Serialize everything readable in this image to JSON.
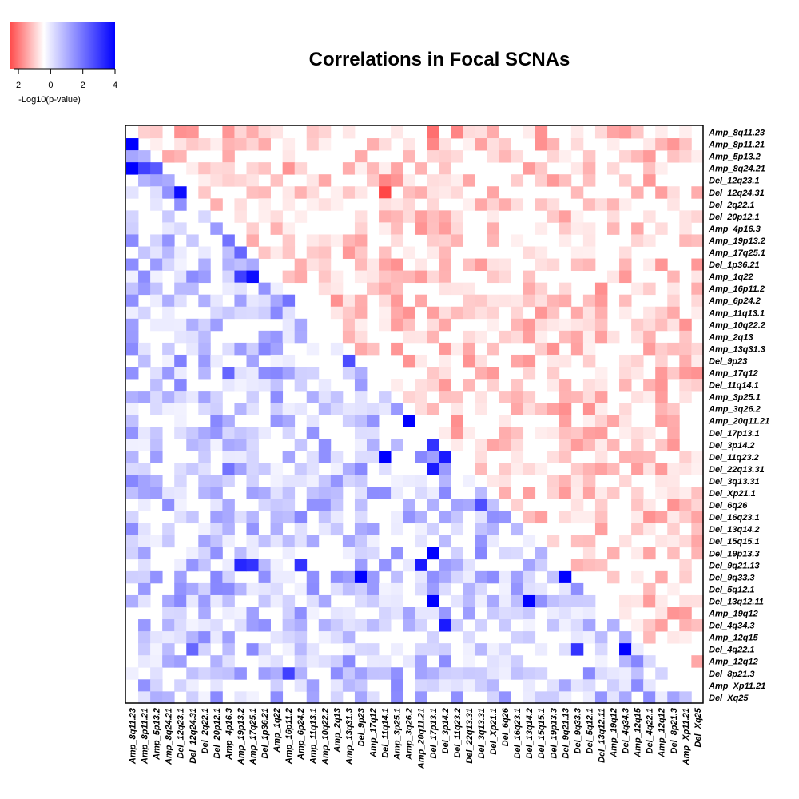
{
  "chart_data": {
    "type": "heatmap",
    "title": "Correlations in Focal SCNAs",
    "legend": {
      "label": "-Log10(p-value)",
      "ticks": [
        "2",
        "0",
        "2",
        "4"
      ],
      "tick_values": [
        -2,
        0,
        2,
        4
      ],
      "range": [
        -2.5,
        4
      ],
      "colors": {
        "negative": "#ff0000",
        "zero": "#ffffff",
        "positive": "#0000ff"
      },
      "placement": "top-left"
    },
    "labels": [
      "Amp_8q11.23",
      "Amp_8p11.21",
      "Amp_5p13.2",
      "Amp_8q24.21",
      "Del_12q23.1",
      "Del_12q24.31",
      "Del_2q22.1",
      "Del_20p12.1",
      "Amp_4p16.3",
      "Amp_19p13.2",
      "Amp_17q25.1",
      "Del_1p36.21",
      "Amp_1q22",
      "Amp_16p11.2",
      "Amp_6p24.2",
      "Amp_11q13.1",
      "Amp_10q22.2",
      "Amp_2q13",
      "Amp_13q31.3",
      "Del_9p23",
      "Amp_17q12",
      "Del_11q14.1",
      "Amp_3p25.1",
      "Amp_3q26.2",
      "Amp_20q11.21",
      "Del_17p13.1",
      "Del_3p14.2",
      "Del_11q23.2",
      "Del_22q13.31",
      "Del_3q13.31",
      "Del_Xp21.1",
      "Del_6q26",
      "Del_16q23.1",
      "Del_13q14.2",
      "Del_15q15.1",
      "Del_19p13.3",
      "Del_9q21.13",
      "Del_9q33.3",
      "Del_5q12.1",
      "Del_13q12.11",
      "Amp_19q12",
      "Del_4q34.3",
      "Amp_12q15",
      "Del_4q22.1",
      "Amp_12q12",
      "Del_8p21.3",
      "Amp_Xp11.21",
      "Del_Xq25"
    ],
    "value_note": "Signed -log10(p): negative = upper triangle (red), positive = lower triangle (blue); values are approximate readings",
    "strong_cells": [
      {
        "row": "Amp_8p11.21",
        "col": "Amp_8q11.23",
        "value": 4.0
      },
      {
        "row": "Amp_5p13.2",
        "col": "Amp_8q11.23",
        "value": 1.4
      },
      {
        "row": "Amp_5p13.2",
        "col": "Amp_8p11.21",
        "value": 1.2
      },
      {
        "row": "Amp_8q24.21",
        "col": "Amp_8q11.23",
        "value": 4.0
      },
      {
        "row": "Amp_8q24.21",
        "col": "Amp_8p11.21",
        "value": 3.0
      },
      {
        "row": "Amp_8q24.21",
        "col": "Amp_5p13.2",
        "value": 2.6
      },
      {
        "row": "Del_12q23.1",
        "col": "Amp_8p11.21",
        "value": 1.2
      },
      {
        "row": "Del_12q24.31",
        "col": "Del_12q23.1",
        "value": 3.8
      },
      {
        "row": "Amp_4p16.3",
        "col": "Del_12q23.1",
        "value": 0.6
      },
      {
        "row": "Amp_19p13.2",
        "col": "Amp_4p16.3",
        "value": 2.2
      },
      {
        "row": "Amp_17q25.1",
        "col": "Amp_4p16.3",
        "value": 1.0
      },
      {
        "row": "Amp_17q25.1",
        "col": "Amp_19p13.2",
        "value": 2.4
      },
      {
        "row": "Del_1p36.21",
        "col": "Amp_19p13.2",
        "value": 1.0
      },
      {
        "row": "Amp_1q22",
        "col": "Amp_19p13.2",
        "value": 3.0
      },
      {
        "row": "Amp_1q22",
        "col": "Amp_17q25.1",
        "value": 3.8
      },
      {
        "row": "Amp_1q22",
        "col": "Amp_8p11.21",
        "value": 1.8
      },
      {
        "row": "Amp_16p11.2",
        "col": "Amp_8p11.21",
        "value": 1.6
      },
      {
        "row": "Amp_6p24.2",
        "col": "Amp_16p11.2",
        "value": 2.2
      },
      {
        "row": "Amp_6p24.2",
        "col": "Amp_1q22",
        "value": 1.4
      },
      {
        "row": "Del_9p23",
        "col": "Amp_13q31.3",
        "value": 2.8
      },
      {
        "row": "Del_9p23",
        "col": "Del_12q23.1",
        "value": 2.0
      },
      {
        "row": "Amp_17q12",
        "col": "Amp_4p16.3",
        "value": 2.4
      },
      {
        "row": "Amp_3q26.2",
        "col": "Amp_3p25.1",
        "value": 1.6
      },
      {
        "row": "Amp_20q11.21",
        "col": "Amp_3q26.2",
        "value": 4.0
      },
      {
        "row": "Del_3p14.2",
        "col": "Del_17p13.1",
        "value": 3.2
      },
      {
        "row": "Del_11q23.2",
        "col": "Del_11q14.1",
        "value": 4.0
      },
      {
        "row": "Del_11q23.2",
        "col": "Del_3p14.2",
        "value": 3.6
      },
      {
        "row": "Del_22q13.31",
        "col": "Del_17p13.1",
        "value": 3.6
      },
      {
        "row": "Del_22q13.31",
        "col": "Amp_4p16.3",
        "value": 2.2
      },
      {
        "row": "Del_6q26",
        "col": "Del_3q13.31",
        "value": 2.8
      },
      {
        "row": "Del_19p13.3",
        "col": "Del_17p13.1",
        "value": 4.0
      },
      {
        "row": "Del_9q21.13",
        "col": "Amp_19p13.2",
        "value": 3.4
      },
      {
        "row": "Del_9q21.13",
        "col": "Amp_17q25.1",
        "value": 3.2
      },
      {
        "row": "Del_9q21.13",
        "col": "Amp_6p24.2",
        "value": 3.2
      },
      {
        "row": "Del_9q21.13",
        "col": "Amp_20q11.21",
        "value": 3.6
      },
      {
        "row": "Del_9q33.3",
        "col": "Del_9p23",
        "value": 4.0
      },
      {
        "row": "Del_9q33.3",
        "col": "Del_9q21.13",
        "value": 4.0
      },
      {
        "row": "Del_13q12.11",
        "col": "Del_17p13.1",
        "value": 4.0
      },
      {
        "row": "Del_13q12.11",
        "col": "Del_13q14.2",
        "value": 4.0
      },
      {
        "row": "Del_4q34.3",
        "col": "Del_3p14.2",
        "value": 3.6
      },
      {
        "row": "Del_4q22.1",
        "col": "Del_4q34.3",
        "value": 4.0
      },
      {
        "row": "Del_4q22.1",
        "col": "Del_9q33.3",
        "value": 3.2
      },
      {
        "row": "Del_4q22.1",
        "col": "Del_12q24.31",
        "value": 2.4
      },
      {
        "row": "Del_8p21.3",
        "col": "Amp_16p11.2",
        "value": 3.0
      },
      {
        "row": "Amp_8q11.23",
        "col": "Del_17p13.1",
        "value": -1.4
      },
      {
        "row": "Amp_8q11.23",
        "col": "Del_11q23.2",
        "value": -1.2
      },
      {
        "row": "Amp_8p11.21",
        "col": "Del_17p13.1",
        "value": -1.2
      },
      {
        "row": "Del_12q23.1",
        "col": "Del_11q14.1",
        "value": -1.2
      },
      {
        "row": "Del_12q24.31",
        "col": "Del_11q14.1",
        "value": -1.8
      },
      {
        "row": "Del_12q24.31",
        "col": "Amp_20q11.21",
        "value": -0.8
      },
      {
        "row": "Del_1p36.21",
        "col": "Del_3q13.31",
        "value": -1.0
      },
      {
        "row": "Amp_17q12",
        "col": "Del_Xp21.1",
        "value": -1.0
      },
      {
        "row": "Amp_17q12",
        "col": "Amp_12q12",
        "value": -1.0
      },
      {
        "row": "Del_22q13.31",
        "col": "Amp_12q12",
        "value": -1.0
      }
    ]
  }
}
